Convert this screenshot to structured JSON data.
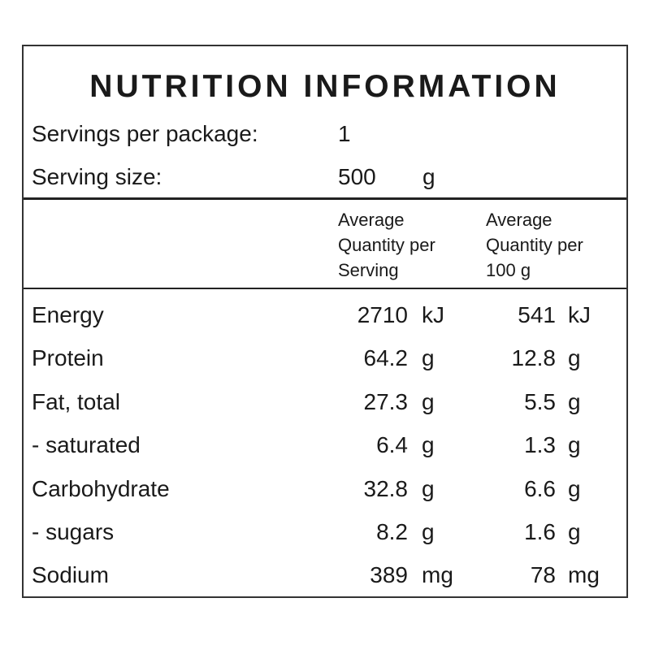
{
  "title": "NUTRITION INFORMATION",
  "servings": {
    "label": "Servings per package:",
    "value": "1"
  },
  "serving_size": {
    "label": "Serving size:",
    "value": "500",
    "unit": "g"
  },
  "table": {
    "headers": [
      [
        "Average",
        "Quantity per",
        "Serving"
      ],
      [
        "Average",
        "Quantity per",
        "100 g"
      ]
    ],
    "rows": [
      [
        "Energy",
        "2710",
        "kJ",
        "541",
        "kJ"
      ],
      [
        "Protein",
        "64.2",
        "g",
        "12.8",
        "g"
      ],
      [
        "Fat, total",
        "27.3",
        "g",
        "5.5",
        "g"
      ],
      [
        "- saturated",
        "6.4",
        "g",
        "1.3",
        "g"
      ],
      [
        "Carbohydrate",
        "32.8",
        "g",
        "6.6",
        "g"
      ],
      [
        "- sugars",
        "8.2",
        "g",
        "1.6",
        "g"
      ],
      [
        "Sodium",
        "389",
        "mg",
        "78",
        "mg"
      ]
    ]
  }
}
